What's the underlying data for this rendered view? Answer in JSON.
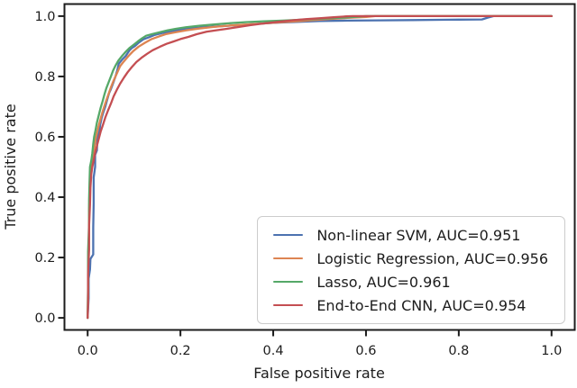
{
  "figure": {
    "background": "#ffffff",
    "axis_color": "#1c1c1c",
    "legend_border_color": "#cccccc"
  },
  "chart_data": {
    "type": "line",
    "title": "",
    "xlabel": "False positive rate",
    "ylabel": "True positive rate",
    "xlim": [
      -0.05,
      1.05
    ],
    "ylim": [
      -0.04,
      1.04
    ],
    "grid": false,
    "legend_position": "lower right",
    "xticks": {
      "values": [
        0,
        0.2,
        0.4,
        0.6,
        0.8,
        1.0
      ],
      "labels": [
        "0.0",
        "0.2",
        "0.4",
        "0.6",
        "0.8",
        "1.0"
      ]
    },
    "yticks": {
      "values": [
        0,
        0.2,
        0.4,
        0.6,
        0.8,
        1.0
      ],
      "labels": [
        "0.0",
        "0.2",
        "0.4",
        "0.6",
        "0.8",
        "1.0"
      ]
    },
    "series": [
      {
        "name": "non-linear-svm",
        "label": "Non-linear SVM, AUC=0.951",
        "auc": 0.951,
        "color": "#4c72b0",
        "points": [
          [
            0,
            0
          ],
          [
            0.002,
            0.065
          ],
          [
            0.002,
            0.13
          ],
          [
            0.005,
            0.16
          ],
          [
            0.006,
            0.195
          ],
          [
            0.012,
            0.21
          ],
          [
            0.012,
            0.3
          ],
          [
            0.013,
            0.38
          ],
          [
            0.013,
            0.465
          ],
          [
            0.016,
            0.5
          ],
          [
            0.016,
            0.54
          ],
          [
            0.02,
            0.555
          ],
          [
            0.021,
            0.6
          ],
          [
            0.025,
            0.615
          ],
          [
            0.027,
            0.64
          ],
          [
            0.03,
            0.662
          ],
          [
            0.034,
            0.682
          ],
          [
            0.038,
            0.7
          ],
          [
            0.042,
            0.722
          ],
          [
            0.046,
            0.744
          ],
          [
            0.05,
            0.758
          ],
          [
            0.055,
            0.778
          ],
          [
            0.06,
            0.8
          ],
          [
            0.064,
            0.822
          ],
          [
            0.067,
            0.842
          ],
          [
            0.075,
            0.857
          ],
          [
            0.082,
            0.868
          ],
          [
            0.09,
            0.886
          ],
          [
            0.095,
            0.894
          ],
          [
            0.102,
            0.901
          ],
          [
            0.11,
            0.912
          ],
          [
            0.12,
            0.923
          ],
          [
            0.132,
            0.93
          ],
          [
            0.145,
            0.938
          ],
          [
            0.16,
            0.944
          ],
          [
            0.178,
            0.948
          ],
          [
            0.2,
            0.955
          ],
          [
            0.222,
            0.959
          ],
          [
            0.25,
            0.963
          ],
          [
            0.28,
            0.966
          ],
          [
            0.312,
            0.969
          ],
          [
            0.35,
            0.973
          ],
          [
            0.4,
            0.978
          ],
          [
            0.45,
            0.981
          ],
          [
            0.5,
            0.984
          ],
          [
            0.56,
            0.985
          ],
          [
            0.63,
            0.986
          ],
          [
            0.7,
            0.987
          ],
          [
            0.78,
            0.988
          ],
          [
            0.85,
            0.989
          ],
          [
            0.862,
            0.995
          ],
          [
            0.875,
            1
          ],
          [
            1,
            1
          ]
        ]
      },
      {
        "name": "logistic-regression",
        "label": "Logistic Regression, AUC=0.956",
        "auc": 0.956,
        "color": "#dd8452",
        "points": [
          [
            0,
            0
          ],
          [
            0.001,
            0.09
          ],
          [
            0.001,
            0.19
          ],
          [
            0.003,
            0.27
          ],
          [
            0.003,
            0.36
          ],
          [
            0.005,
            0.43
          ],
          [
            0.006,
            0.475
          ],
          [
            0.008,
            0.5
          ],
          [
            0.01,
            0.515
          ],
          [
            0.013,
            0.548
          ],
          [
            0.015,
            0.568
          ],
          [
            0.017,
            0.592
          ],
          [
            0.02,
            0.612
          ],
          [
            0.024,
            0.638
          ],
          [
            0.028,
            0.66
          ],
          [
            0.032,
            0.682
          ],
          [
            0.036,
            0.702
          ],
          [
            0.04,
            0.72
          ],
          [
            0.045,
            0.742
          ],
          [
            0.05,
            0.764
          ],
          [
            0.056,
            0.786
          ],
          [
            0.063,
            0.81
          ],
          [
            0.07,
            0.834
          ],
          [
            0.078,
            0.85
          ],
          [
            0.088,
            0.868
          ],
          [
            0.098,
            0.884
          ],
          [
            0.11,
            0.899
          ],
          [
            0.124,
            0.912
          ],
          [
            0.138,
            0.924
          ],
          [
            0.154,
            0.933
          ],
          [
            0.17,
            0.941
          ],
          [
            0.19,
            0.947
          ],
          [
            0.212,
            0.953
          ],
          [
            0.24,
            0.959
          ],
          [
            0.27,
            0.964
          ],
          [
            0.3,
            0.968
          ],
          [
            0.34,
            0.972
          ],
          [
            0.38,
            0.976
          ],
          [
            0.42,
            0.98
          ],
          [
            0.46,
            0.984
          ],
          [
            0.5,
            0.988
          ],
          [
            0.53,
            0.991
          ],
          [
            0.56,
            0.994
          ],
          [
            0.6,
            0.997
          ],
          [
            0.62,
            1
          ],
          [
            1,
            1
          ]
        ]
      },
      {
        "name": "lasso",
        "label": "Lasso, AUC=0.961",
        "auc": 0.961,
        "color": "#55a868",
        "points": [
          [
            0,
            0
          ],
          [
            0.001,
            0.11
          ],
          [
            0.001,
            0.22
          ],
          [
            0.003,
            0.31
          ],
          [
            0.003,
            0.39
          ],
          [
            0.004,
            0.45
          ],
          [
            0.005,
            0.5
          ],
          [
            0.008,
            0.522
          ],
          [
            0.01,
            0.546
          ],
          [
            0.012,
            0.576
          ],
          [
            0.014,
            0.6
          ],
          [
            0.017,
            0.623
          ],
          [
            0.02,
            0.647
          ],
          [
            0.024,
            0.672
          ],
          [
            0.028,
            0.696
          ],
          [
            0.032,
            0.717
          ],
          [
            0.036,
            0.74
          ],
          [
            0.04,
            0.76
          ],
          [
            0.045,
            0.78
          ],
          [
            0.05,
            0.8
          ],
          [
            0.055,
            0.82
          ],
          [
            0.06,
            0.836
          ],
          [
            0.066,
            0.852
          ],
          [
            0.074,
            0.868
          ],
          [
            0.081,
            0.88
          ],
          [
            0.09,
            0.894
          ],
          [
            0.1,
            0.906
          ],
          [
            0.108,
            0.916
          ],
          [
            0.117,
            0.926
          ],
          [
            0.126,
            0.935
          ],
          [
            0.14,
            0.941
          ],
          [
            0.156,
            0.947
          ],
          [
            0.172,
            0.953
          ],
          [
            0.19,
            0.958
          ],
          [
            0.212,
            0.963
          ],
          [
            0.24,
            0.968
          ],
          [
            0.27,
            0.972
          ],
          [
            0.3,
            0.976
          ],
          [
            0.34,
            0.98
          ],
          [
            0.38,
            0.983
          ],
          [
            0.42,
            0.985
          ],
          [
            0.46,
            0.988
          ],
          [
            0.5,
            0.991
          ],
          [
            0.55,
            0.995
          ],
          [
            0.58,
            0.998
          ],
          [
            0.6,
            1
          ],
          [
            1,
            1
          ]
        ]
      },
      {
        "name": "end-to-end-cnn",
        "label": "End-to-End CNN, AUC=0.954",
        "auc": 0.954,
        "color": "#c44e52",
        "points": [
          [
            0,
            0
          ],
          [
            0.001,
            0.05
          ],
          [
            0.001,
            0.145
          ],
          [
            0.003,
            0.225
          ],
          [
            0.003,
            0.305
          ],
          [
            0.005,
            0.375
          ],
          [
            0.006,
            0.432
          ],
          [
            0.008,
            0.478
          ],
          [
            0.01,
            0.5
          ],
          [
            0.013,
            0.522
          ],
          [
            0.016,
            0.546
          ],
          [
            0.02,
            0.57
          ],
          [
            0.024,
            0.594
          ],
          [
            0.028,
            0.617
          ],
          [
            0.033,
            0.64
          ],
          [
            0.038,
            0.664
          ],
          [
            0.044,
            0.688
          ],
          [
            0.05,
            0.71
          ],
          [
            0.056,
            0.734
          ],
          [
            0.063,
            0.756
          ],
          [
            0.07,
            0.776
          ],
          [
            0.078,
            0.796
          ],
          [
            0.086,
            0.814
          ],
          [
            0.095,
            0.831
          ],
          [
            0.105,
            0.848
          ],
          [
            0.116,
            0.862
          ],
          [
            0.128,
            0.875
          ],
          [
            0.14,
            0.887
          ],
          [
            0.155,
            0.898
          ],
          [
            0.17,
            0.908
          ],
          [
            0.185,
            0.916
          ],
          [
            0.2,
            0.924
          ],
          [
            0.217,
            0.931
          ],
          [
            0.235,
            0.94
          ],
          [
            0.256,
            0.948
          ],
          [
            0.276,
            0.953
          ],
          [
            0.3,
            0.958
          ],
          [
            0.325,
            0.964
          ],
          [
            0.35,
            0.97
          ],
          [
            0.38,
            0.976
          ],
          [
            0.41,
            0.981
          ],
          [
            0.44,
            0.986
          ],
          [
            0.47,
            0.99
          ],
          [
            0.5,
            0.993
          ],
          [
            0.53,
            0.996
          ],
          [
            0.558,
            0.999
          ],
          [
            0.572,
            1
          ],
          [
            1,
            1
          ]
        ]
      }
    ]
  }
}
